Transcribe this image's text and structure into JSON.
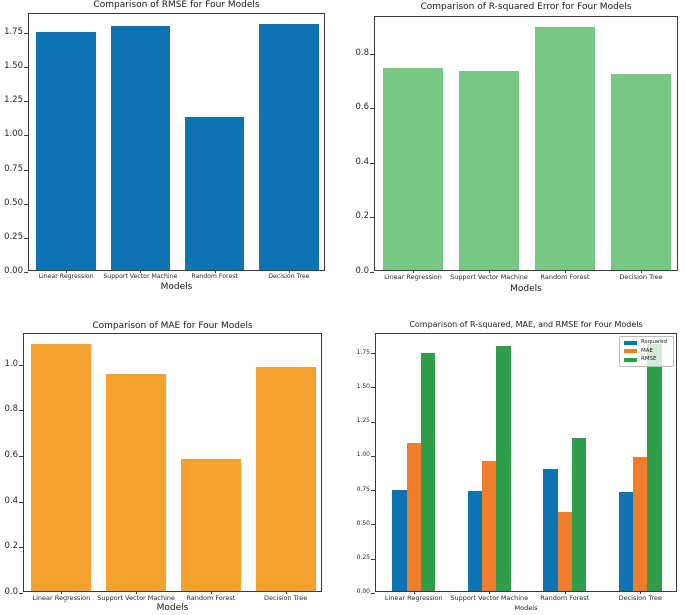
{
  "figure": {
    "background": "#ffffff",
    "models": [
      "Linear Regression",
      "Support Vector Machine",
      "Random Forest",
      "Decision Tree"
    ]
  },
  "chart_data": [
    {
      "type": "bar",
      "title": "Comparison of RMSE for Four Models",
      "xlabel": "Models",
      "ylabel": "",
      "categories": [
        "Linear Regression",
        "Support Vector Machine",
        "Random Forest",
        "Decision Tree"
      ],
      "values": [
        1.74,
        1.79,
        1.12,
        1.8
      ],
      "bar_color": "#0d73b1",
      "ylim": [
        0,
        1.89
      ],
      "yticks": [
        "0.00",
        "0.25",
        "0.50",
        "0.75",
        "1.00",
        "1.25",
        "1.50",
        "1.75"
      ],
      "grid": false
    },
    {
      "type": "bar",
      "title": "Comparison of R-squared Error for Four Models",
      "xlabel": "Models",
      "ylabel": "",
      "categories": [
        "Linear Regression",
        "Support Vector Machine",
        "Random Forest",
        "Decision Tree"
      ],
      "values": [
        0.74,
        0.73,
        0.89,
        0.72
      ],
      "bar_color": "#7ac783",
      "ylim": [
        0,
        0.935
      ],
      "yticks": [
        "0.0",
        "0.2",
        "0.4",
        "0.6",
        "0.8"
      ],
      "grid": false
    },
    {
      "type": "bar",
      "title": "Comparison of MAE for Four Models",
      "xlabel": "Models",
      "ylabel": "",
      "categories": [
        "Linear Regression",
        "Support Vector Machine",
        "Random Forest",
        "Decision Tree"
      ],
      "values": [
        1.08,
        0.95,
        0.58,
        0.98
      ],
      "bar_color": "#f4a12d",
      "ylim": [
        0,
        1.134
      ],
      "yticks": [
        "0.0",
        "0.2",
        "0.4",
        "0.6",
        "0.8",
        "1.0"
      ],
      "grid": false
    },
    {
      "type": "bar",
      "title": "Comparison of R-squared, MAE, and RMSE for Four Models",
      "xlabel": "Models",
      "ylabel": "",
      "categories": [
        "Linear Regression",
        "Support Vector Machine",
        "Random Forest",
        "Decision Tree"
      ],
      "series": [
        {
          "name": "Rsquared",
          "color": "#0d73b1",
          "values": [
            0.74,
            0.73,
            0.89,
            0.72
          ]
        },
        {
          "name": "MAE",
          "color": "#ef7d2b",
          "values": [
            1.08,
            0.95,
            0.58,
            0.98
          ]
        },
        {
          "name": "RMSE",
          "color": "#2f9e48",
          "values": [
            1.74,
            1.79,
            1.12,
            1.8
          ]
        }
      ],
      "ylim": [
        0,
        1.89
      ],
      "yticks": [
        "0.00",
        "0.25",
        "0.50",
        "0.75",
        "1.00",
        "1.25",
        "1.50",
        "1.75"
      ],
      "grid": false,
      "legend": {
        "position": "upper right",
        "entries": [
          "Rsquared",
          "MAE",
          "RMSE"
        ]
      }
    }
  ]
}
